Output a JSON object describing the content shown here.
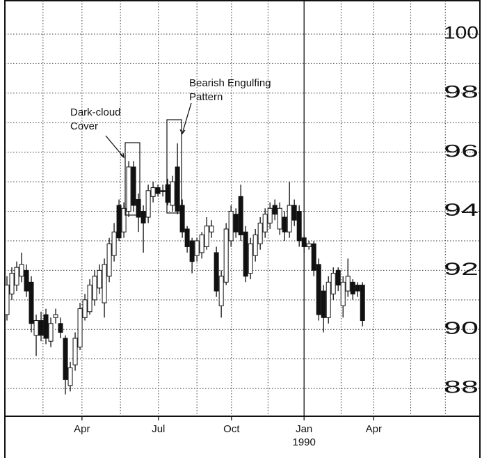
{
  "chart_data": {
    "type": "candlestick",
    "x": [
      0,
      1,
      2,
      3,
      4,
      5,
      6,
      7,
      8,
      9,
      10,
      11,
      12,
      13,
      14,
      15,
      16,
      17,
      18,
      19,
      20,
      21,
      22,
      23,
      24,
      25,
      26,
      27,
      28,
      29,
      30,
      31,
      32,
      33,
      34,
      35,
      36,
      37,
      38,
      39,
      40,
      41,
      42,
      43,
      44,
      45,
      46,
      47,
      48,
      49,
      50,
      51,
      52,
      53,
      54,
      55,
      56,
      57,
      58,
      59,
      60,
      61,
      62,
      63,
      64,
      65,
      66,
      67,
      68,
      69,
      70,
      71,
      72,
      73
    ],
    "open": [
      90.5,
      91.2,
      91.5,
      91.8,
      92.0,
      91.6,
      89.8,
      90.3,
      90.5,
      89.6,
      90.4,
      90.2,
      89.7,
      88.1,
      88.8,
      89.4,
      90.4,
      90.6,
      91.0,
      91.4,
      90.9,
      91.8,
      92.5,
      94.2,
      93.3,
      94.0,
      95.5,
      94.4,
      94.0,
      93.8,
      94.5,
      94.8,
      94.7,
      94.9,
      94.2,
      95.5,
      94.2,
      93.4,
      93.0,
      92.5,
      92.6,
      92.8,
      93.3,
      92.6,
      90.8,
      91.6,
      93.0,
      93.9,
      94.5,
      93.3,
      91.9,
      92.5,
      92.9,
      93.3,
      93.6,
      94.2,
      93.4,
      93.8,
      93.3,
      94.2,
      94.0,
      93.1,
      92.8,
      92.9,
      92.2,
      91.3,
      90.4,
      91.2,
      92.0,
      90.8,
      91.3,
      91.6,
      91.5,
      91.5
    ],
    "high": [
      91.8,
      92.1,
      92.3,
      92.6,
      92.2,
      91.8,
      90.5,
      90.6,
      90.7,
      90.4,
      90.7,
      90.4,
      89.8,
      88.9,
      89.9,
      90.9,
      91.2,
      91.7,
      92.0,
      92.2,
      92.4,
      93.1,
      93.6,
      94.4,
      94.3,
      95.7,
      95.7,
      94.6,
      94.2,
      94.9,
      95.0,
      94.9,
      94.9,
      95.1,
      95.2,
      96.3,
      94.4,
      93.5,
      93.1,
      93.1,
      93.3,
      93.8,
      93.7,
      92.8,
      92.0,
      93.6,
      94.2,
      94.1,
      94.9,
      93.5,
      93.1,
      93.4,
      93.8,
      94.1,
      94.3,
      94.4,
      94.3,
      94.0,
      95.0,
      94.4,
      94.2,
      93.2,
      93.0,
      93.0,
      92.4,
      91.5,
      91.8,
      92.1,
      92.1,
      91.8,
      92.4,
      91.7,
      91.6,
      91.6
    ],
    "low": [
      90.3,
      91.0,
      91.3,
      91.6,
      91.1,
      89.9,
      89.1,
      89.6,
      89.5,
      89.4,
      90.2,
      89.7,
      87.8,
      87.9,
      88.6,
      89.3,
      90.3,
      90.5,
      90.8,
      91.2,
      90.4,
      91.6,
      92.3,
      93.0,
      93.1,
      93.8,
      94.0,
      93.3,
      92.6,
      93.6,
      94.3,
      94.5,
      94.5,
      94.2,
      94.0,
      93.9,
      93.1,
      92.6,
      91.9,
      92.3,
      92.4,
      92.7,
      93.1,
      91.1,
      90.4,
      91.5,
      92.8,
      93.1,
      93.0,
      91.6,
      91.7,
      92.3,
      92.7,
      93.1,
      93.4,
      93.7,
      93.2,
      93.0,
      93.1,
      93.5,
      92.8,
      92.6,
      92.7,
      91.8,
      90.3,
      89.9,
      90.2,
      91.0,
      91.3,
      90.4,
      91.1,
      91.0,
      91.1,
      90.1
    ],
    "close": [
      91.5,
      91.9,
      92.1,
      92.2,
      91.3,
      90.2,
      90.3,
      89.8,
      89.7,
      90.2,
      90.5,
      89.9,
      88.3,
      88.7,
      89.7,
      90.7,
      91.0,
      91.5,
      91.8,
      92.0,
      92.2,
      92.9,
      93.3,
      93.1,
      94.1,
      95.5,
      94.2,
      93.8,
      93.6,
      94.7,
      94.8,
      94.6,
      94.7,
      94.3,
      95.0,
      94.0,
      93.3,
      92.8,
      92.3,
      93.0,
      93.2,
      93.5,
      93.5,
      91.3,
      91.8,
      93.4,
      94.0,
      93.3,
      93.2,
      91.8,
      92.9,
      93.2,
      93.6,
      93.9,
      94.1,
      93.9,
      94.1,
      93.3,
      94.2,
      93.7,
      93.0,
      92.8,
      92.9,
      92.0,
      90.5,
      90.4,
      91.6,
      91.9,
      91.5,
      91.6,
      91.8,
      91.2,
      91.3,
      90.3
    ],
    "ylim": [
      87.06,
      101.13
    ],
    "yticks": [
      88,
      90,
      92,
      94,
      96,
      98,
      100
    ],
    "ygrid": [
      88,
      89,
      90,
      91,
      92,
      93,
      94,
      95,
      96,
      97,
      98,
      99,
      100
    ],
    "xlim": [
      -0.43,
      97.1
    ],
    "xticks": [
      {
        "value": 15.4,
        "label": "Apr"
      },
      {
        "value": 31.1,
        "label": "Jul"
      },
      {
        "value": 46.1,
        "label": "Oct"
      },
      {
        "value": 61,
        "label": "Jan"
      },
      {
        "value": 75.3,
        "label": "Apr"
      }
    ],
    "year_label": "1990",
    "xgrid": [
      7.4,
      15.4,
      23.3,
      31.1,
      39,
      46.1,
      53.6,
      68.6,
      75.3,
      82.9,
      90
    ],
    "xgrid_solid": [
      61
    ],
    "annotations": [
      {
        "lines": [
          "Dark-cloud",
          "Cover"
        ]
      },
      {
        "lines": [
          "Bearish Engulfing",
          "Pattern"
        ]
      }
    ]
  }
}
